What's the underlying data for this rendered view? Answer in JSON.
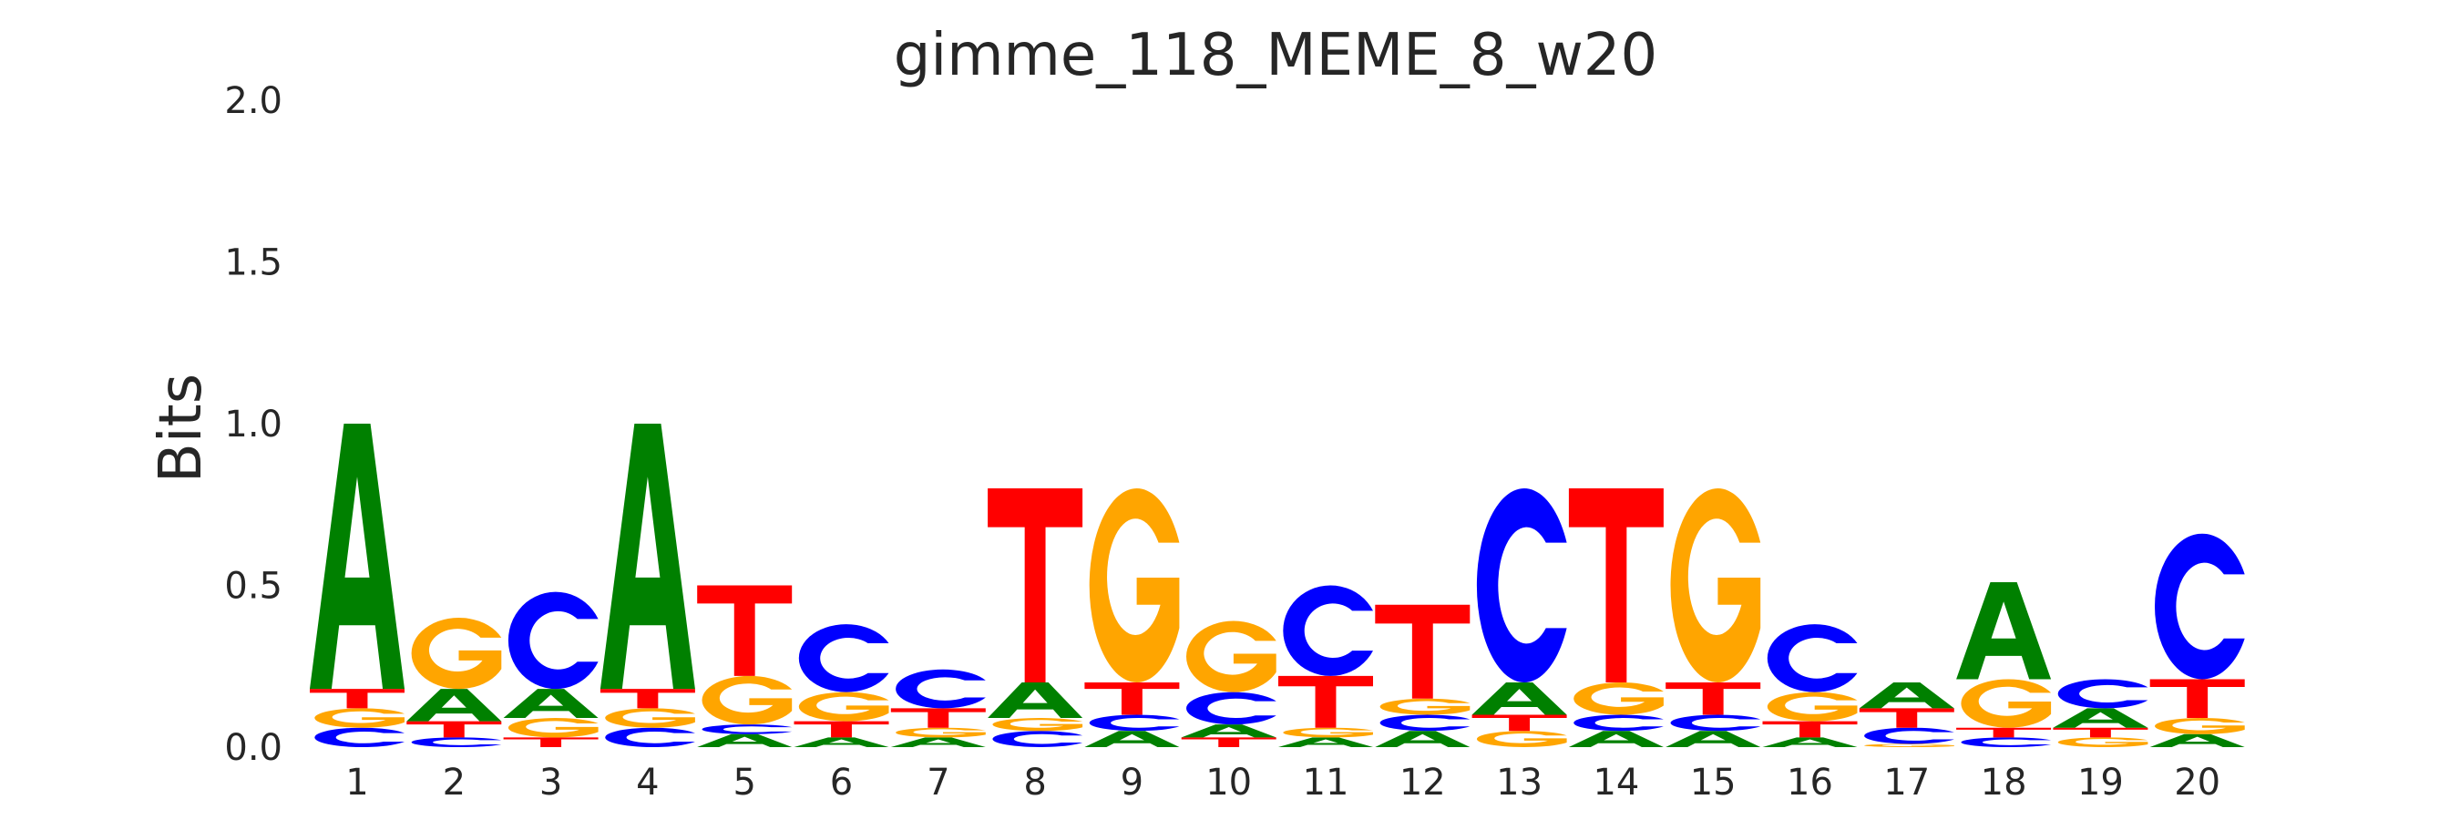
{
  "chart_data": {
    "type": "sequence-logo",
    "title": "gimme_118_MEME_8_w20",
    "xlabel": "",
    "ylabel": "Bits",
    "ylim": [
      0,
      2.0
    ],
    "yticks": [
      "0.0",
      "0.5",
      "1.0",
      "1.5",
      "2.0"
    ],
    "positions": [
      "1",
      "2",
      "3",
      "4",
      "5",
      "6",
      "7",
      "8",
      "9",
      "10",
      "11",
      "12",
      "13",
      "14",
      "15",
      "16",
      "17",
      "18",
      "19",
      "20"
    ],
    "letter_colors": {
      "A": "#008000",
      "C": "#0000ff",
      "G": "#ffa500",
      "T": "#ff0000"
    },
    "stacks": [
      [
        {
          "base": "C",
          "bits": 0.06
        },
        {
          "base": "G",
          "bits": 0.06
        },
        {
          "base": "T",
          "bits": 0.06
        },
        {
          "base": "A",
          "bits": 0.82
        }
      ],
      [
        {
          "base": "C",
          "bits": 0.03
        },
        {
          "base": "T",
          "bits": 0.05
        },
        {
          "base": "A",
          "bits": 0.1
        },
        {
          "base": "G",
          "bits": 0.22
        }
      ],
      [
        {
          "base": "T",
          "bits": 0.03
        },
        {
          "base": "G",
          "bits": 0.06
        },
        {
          "base": "A",
          "bits": 0.09
        },
        {
          "base": "C",
          "bits": 0.3
        }
      ],
      [
        {
          "base": "C",
          "bits": 0.06
        },
        {
          "base": "G",
          "bits": 0.06
        },
        {
          "base": "T",
          "bits": 0.06
        },
        {
          "base": "A",
          "bits": 0.82
        }
      ],
      [
        {
          "base": "A",
          "bits": 0.04
        },
        {
          "base": "C",
          "bits": 0.03
        },
        {
          "base": "G",
          "bits": 0.15
        },
        {
          "base": "T",
          "bits": 0.28
        }
      ],
      [
        {
          "base": "A",
          "bits": 0.03
        },
        {
          "base": "T",
          "bits": 0.05
        },
        {
          "base": "G",
          "bits": 0.09
        },
        {
          "base": "C",
          "bits": 0.21
        }
      ],
      [
        {
          "base": "A",
          "bits": 0.03
        },
        {
          "base": "G",
          "bits": 0.03
        },
        {
          "base": "T",
          "bits": 0.06
        },
        {
          "base": "C",
          "bits": 0.12
        }
      ],
      [
        {
          "base": "C",
          "bits": 0.05
        },
        {
          "base": "G",
          "bits": 0.04
        },
        {
          "base": "A",
          "bits": 0.11
        },
        {
          "base": "T",
          "bits": 0.6
        }
      ],
      [
        {
          "base": "A",
          "bits": 0.05
        },
        {
          "base": "C",
          "bits": 0.05
        },
        {
          "base": "T",
          "bits": 0.1
        },
        {
          "base": "G",
          "bits": 0.6
        }
      ],
      [
        {
          "base": "T",
          "bits": 0.03
        },
        {
          "base": "A",
          "bits": 0.04
        },
        {
          "base": "C",
          "bits": 0.1
        },
        {
          "base": "G",
          "bits": 0.22
        }
      ],
      [
        {
          "base": "A",
          "bits": 0.03
        },
        {
          "base": "G",
          "bits": 0.03
        },
        {
          "base": "T",
          "bits": 0.16
        },
        {
          "base": "C",
          "bits": 0.28
        }
      ],
      [
        {
          "base": "A",
          "bits": 0.05
        },
        {
          "base": "C",
          "bits": 0.05
        },
        {
          "base": "G",
          "bits": 0.05
        },
        {
          "base": "T",
          "bits": 0.29
        }
      ],
      [
        {
          "base": "G",
          "bits": 0.05
        },
        {
          "base": "T",
          "bits": 0.05
        },
        {
          "base": "A",
          "bits": 0.1
        },
        {
          "base": "C",
          "bits": 0.6
        }
      ],
      [
        {
          "base": "A",
          "bits": 0.05
        },
        {
          "base": "C",
          "bits": 0.05
        },
        {
          "base": "G",
          "bits": 0.1
        },
        {
          "base": "T",
          "bits": 0.6
        }
      ],
      [
        {
          "base": "A",
          "bits": 0.05
        },
        {
          "base": "C",
          "bits": 0.05
        },
        {
          "base": "T",
          "bits": 0.1
        },
        {
          "base": "G",
          "bits": 0.6
        }
      ],
      [
        {
          "base": "A",
          "bits": 0.03
        },
        {
          "base": "T",
          "bits": 0.05
        },
        {
          "base": "G",
          "bits": 0.09
        },
        {
          "base": "C",
          "bits": 0.21
        }
      ],
      [
        {
          "base": "G",
          "bits": 0.01
        },
        {
          "base": "C",
          "bits": 0.05
        },
        {
          "base": "T",
          "bits": 0.06
        },
        {
          "base": "A",
          "bits": 0.08
        }
      ],
      [
        {
          "base": "C",
          "bits": 0.03
        },
        {
          "base": "T",
          "bits": 0.03
        },
        {
          "base": "G",
          "bits": 0.15
        },
        {
          "base": "A",
          "bits": 0.3
        }
      ],
      [
        {
          "base": "G",
          "bits": 0.03
        },
        {
          "base": "T",
          "bits": 0.03
        },
        {
          "base": "A",
          "bits": 0.06
        },
        {
          "base": "C",
          "bits": 0.09
        }
      ],
      [
        {
          "base": "A",
          "bits": 0.04
        },
        {
          "base": "G",
          "bits": 0.05
        },
        {
          "base": "T",
          "bits": 0.12
        },
        {
          "base": "C",
          "bits": 0.45
        }
      ]
    ]
  }
}
